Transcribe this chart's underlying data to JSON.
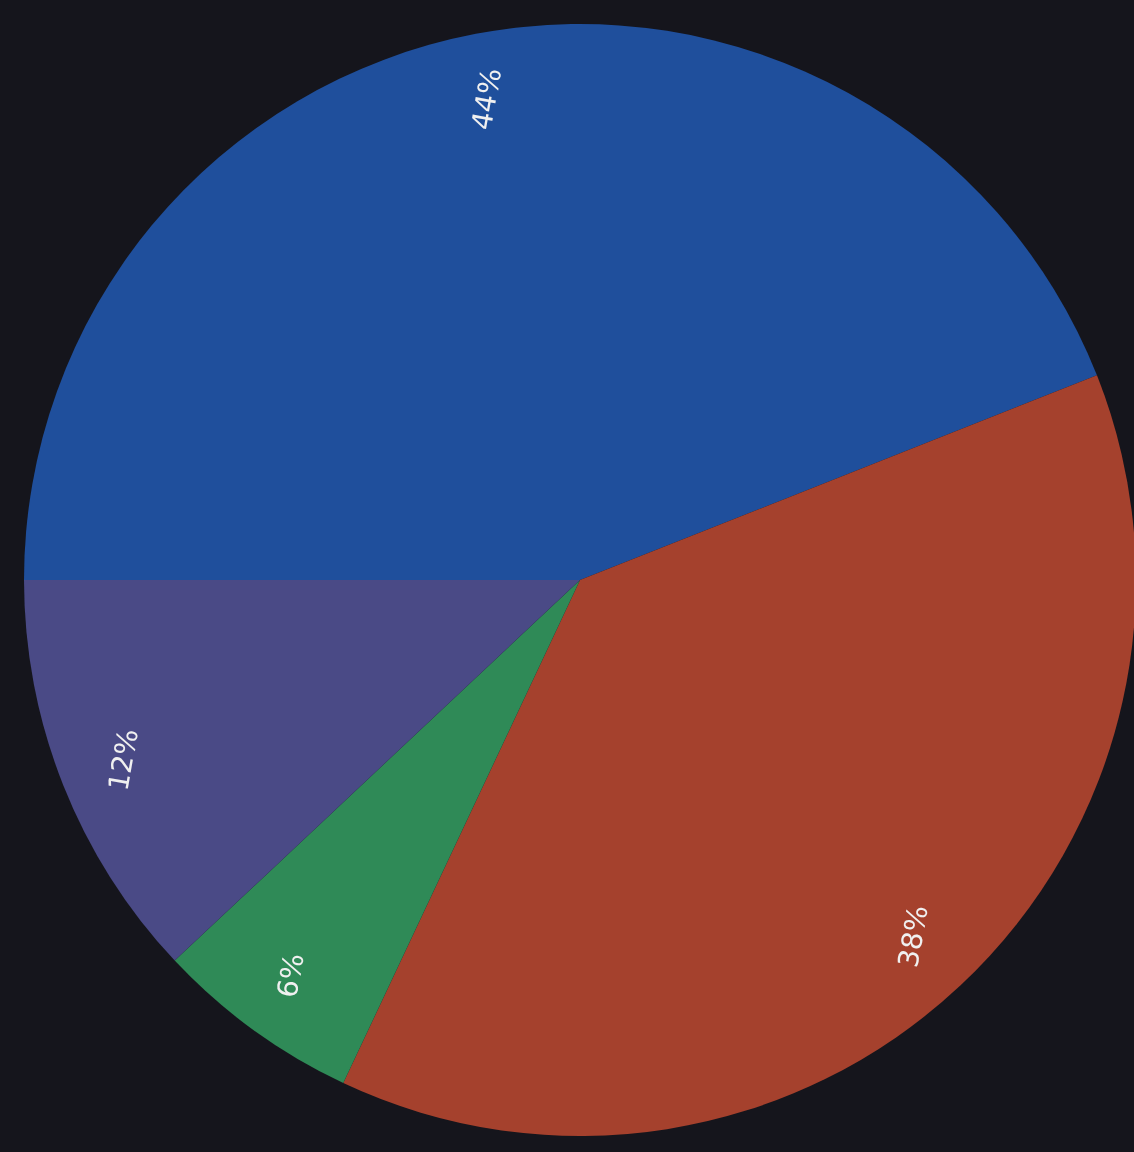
{
  "chart_data": {
    "type": "pie",
    "categories": [
      null,
      null,
      null,
      null
    ],
    "values": [
      44,
      38,
      6,
      12
    ],
    "colors": [
      "#1f4f9c",
      "#a5412d",
      "#2f8a57",
      "#4a4a86"
    ],
    "value_labels": [
      "44%",
      "38%",
      "6%",
      "12%"
    ]
  }
}
